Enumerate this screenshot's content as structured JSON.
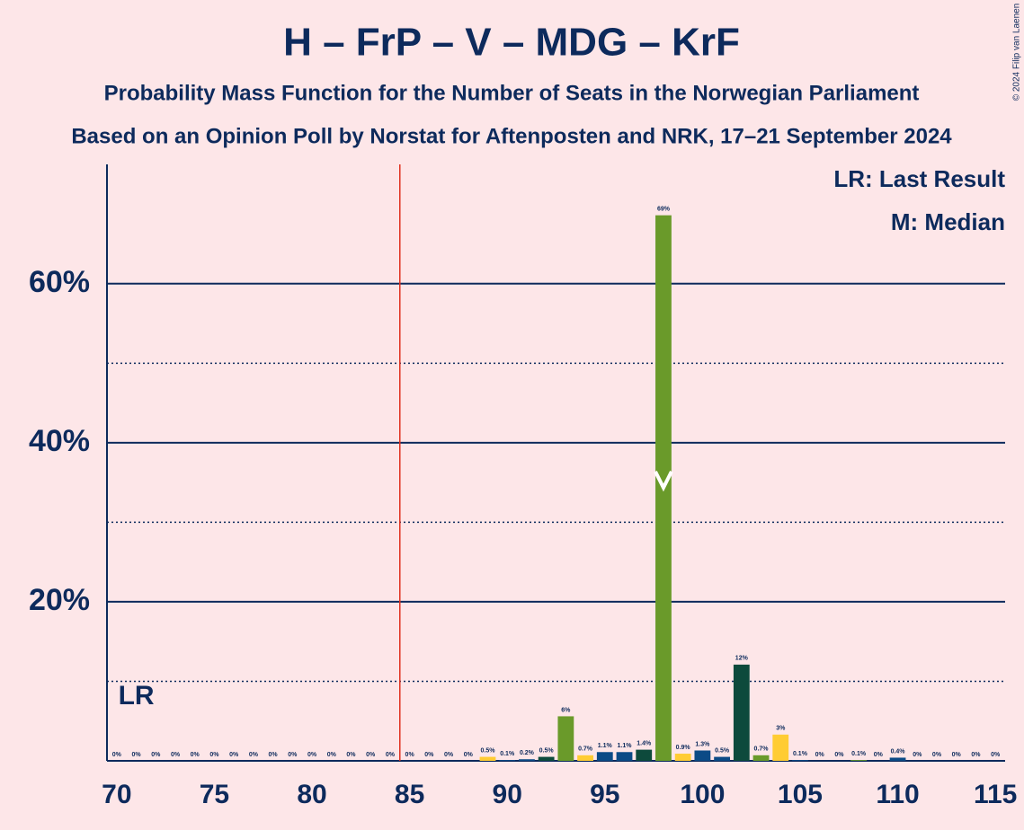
{
  "chart_data": {
    "type": "bar",
    "title": "H – FrP – V – MDG – KrF",
    "subtitle": "Probability Mass Function for the Number of Seats in the Norwegian Parliament",
    "subtitle2": "Based on an Opinion Poll by Norstat for Aftenposten and NRK, 17–21 September 2024",
    "copyright": "© 2024 Filip van Laenen",
    "legend_lr": "LR: Last Result",
    "legend_median": "M: Median",
    "lr_label": "LR",
    "x": [
      70,
      71,
      72,
      73,
      74,
      75,
      76,
      77,
      78,
      79,
      80,
      81,
      82,
      83,
      84,
      85,
      86,
      87,
      88,
      89,
      90,
      91,
      92,
      93,
      94,
      95,
      96,
      97,
      98,
      99,
      100,
      101,
      102,
      103,
      104,
      105,
      106,
      107,
      108,
      109,
      110,
      111,
      112,
      113,
      114,
      115
    ],
    "values": [
      0,
      0,
      0,
      0,
      0,
      0,
      0,
      0,
      0,
      0,
      0,
      0,
      0,
      0,
      0,
      0,
      0,
      0,
      0,
      0.5,
      0.1,
      0.2,
      0.5,
      5.6,
      0.7,
      1.1,
      1.1,
      1.4,
      68.6,
      0.9,
      1.3,
      0.5,
      12.1,
      0.7,
      3.3,
      0.1,
      0,
      0,
      0.1,
      0,
      0.4,
      0,
      0,
      0,
      0,
      0
    ],
    "value_labels": [
      "0%",
      "0%",
      "0%",
      "0%",
      "0%",
      "0%",
      "0%",
      "0%",
      "0%",
      "0%",
      "0%",
      "0%",
      "0%",
      "0%",
      "0%",
      "0%",
      "0%",
      "0%",
      "0%",
      "0.5%",
      "0.1%",
      "0.2%",
      "0.5%",
      "6%",
      "0.7%",
      "1.1%",
      "1.1%",
      "1.4%",
      "69%",
      "0.9%",
      "1.3%",
      "0.5%",
      "12%",
      "0.7%",
      "3%",
      "0.1%",
      "0%",
      "0%",
      "0.1%",
      "0%",
      "0.4%",
      "0%",
      "0%",
      "0%",
      "0%",
      "0%"
    ],
    "colors": [
      "#0b4a86",
      "#0b4a86",
      "#0d4a3c",
      "#6a9a2a",
      "#ffcc33",
      "#0b4a86",
      "#0b4a86",
      "#0d4a3c",
      "#6a9a2a",
      "#ffcc33",
      "#0b4a86",
      "#0b4a86",
      "#0d4a3c",
      "#6a9a2a",
      "#ffcc33",
      "#0b4a86",
      "#0b4a86",
      "#0d4a3c",
      "#6a9a2a",
      "#ffcc33",
      "#0b4a86",
      "#0b4a86",
      "#0d4a3c",
      "#6a9a2a",
      "#ffcc33",
      "#0b4a86",
      "#0b4a86",
      "#0d4a3c",
      "#6a9a2a",
      "#ffcc33",
      "#0b4a86",
      "#0b4a86",
      "#0d4a3c",
      "#6a9a2a",
      "#ffcc33",
      "#0b4a86",
      "#0b4a86",
      "#0d4a3c",
      "#6a9a2a",
      "#ffcc33",
      "#0b4a86",
      "#0b4a86",
      "#0d4a3c",
      "#6a9a2a",
      "#ffcc33",
      "#0b4a86"
    ],
    "xlim": [
      69.5,
      115.5
    ],
    "xticks": [
      70,
      75,
      80,
      85,
      90,
      95,
      100,
      105,
      110,
      115
    ],
    "ylim": [
      0,
      75
    ],
    "yticks": [
      {
        "value": 20,
        "label": "20%"
      },
      {
        "value": 40,
        "label": "40%"
      },
      {
        "value": 60,
        "label": "60%"
      }
    ],
    "minor_yticks": [
      10,
      30,
      50
    ],
    "threshold_line": 84.5,
    "last_result": 71,
    "median": 98,
    "grid": true
  }
}
